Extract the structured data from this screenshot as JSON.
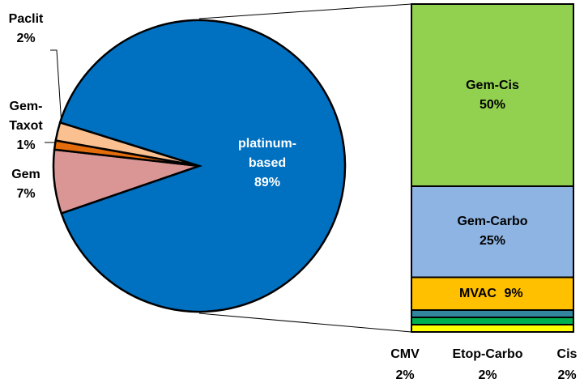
{
  "chart_data": [
    {
      "type": "pie",
      "categories": [
        "Gem",
        "Gem-Taxot",
        "Paclit",
        "platinum-based"
      ],
      "values": [
        7,
        1,
        2,
        89
      ],
      "value_labels": [
        "7%",
        "1%",
        "2%",
        "89%"
      ],
      "colors": [
        "#d99694",
        "#e46c0a",
        "#fac090",
        "#0070c0"
      ]
    },
    {
      "type": "bar",
      "categories": [
        "Gem-Cis",
        "Gem-Carbo",
        "MVAC",
        "CMV",
        "Etop-Carbo",
        "Cis"
      ],
      "values": [
        50,
        25,
        9,
        2,
        2,
        2
      ],
      "value_labels": [
        "50%",
        "25%",
        "9%",
        "2%",
        "2%",
        "2%"
      ],
      "colors": [
        "#92d050",
        "#8eb4e3",
        "#ffc000",
        "#31859c",
        "#00b050",
        "#ffff00"
      ]
    }
  ]
}
